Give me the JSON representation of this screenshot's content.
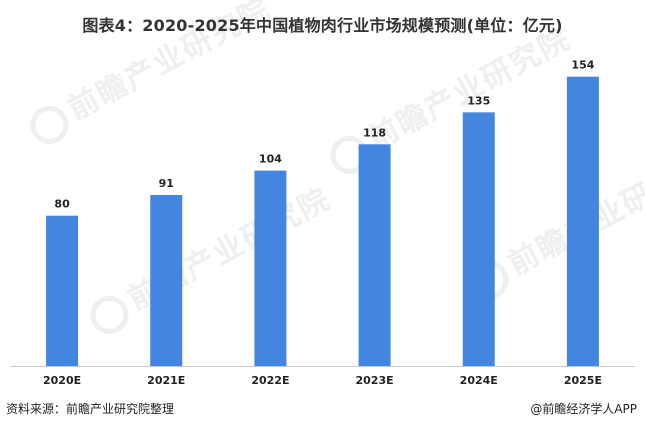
{
  "chart_data": {
    "type": "bar",
    "title": "图表4：2020-2025年中国植物肉行业市场规模预测(单位：亿元)",
    "categories": [
      "2020E",
      "2021E",
      "2022E",
      "2023E",
      "2024E",
      "2025E"
    ],
    "values": [
      80,
      91,
      104,
      118,
      135,
      154
    ],
    "ylim": [
      0,
      165
    ],
    "grid": false,
    "legend": "none",
    "bar_color": "#4286e2"
  },
  "source_left": "资料来源：前瞻产业研究院整理",
  "source_right": "@前瞻经济学人APP",
  "watermark": "前瞻产业研究院"
}
